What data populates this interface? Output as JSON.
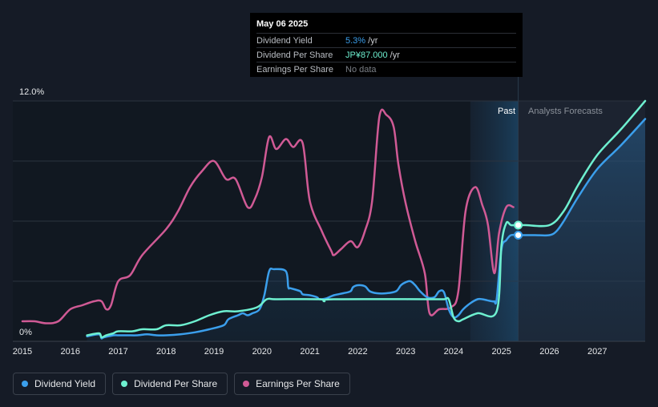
{
  "tooltip": {
    "date": "May 06 2025",
    "rows": [
      {
        "name": "Dividend Yield",
        "value": "5.3%",
        "suffix": " /yr",
        "color": "#3b9fec"
      },
      {
        "name": "Dividend Per Share",
        "value": "JP¥87.000",
        "suffix": " /yr",
        "color": "#6ef0d0"
      },
      {
        "name": "Earnings Per Share",
        "value": "No data",
        "suffix": "",
        "color": "#7a7f86"
      }
    ]
  },
  "regions": {
    "past_label": "Past",
    "forecast_label": "Analysts Forecasts"
  },
  "legend": [
    {
      "label": "Dividend Yield",
      "color": "#3b9fec"
    },
    {
      "label": "Dividend Per Share",
      "color": "#6ef0d0"
    },
    {
      "label": "Earnings Per Share",
      "color": "#d05a95"
    }
  ],
  "chart_data": {
    "type": "line",
    "y_tick_labels": [
      "12.0%",
      "0%"
    ],
    "ylim": [
      0,
      12
    ],
    "xlim": [
      2014.8,
      2028.0
    ],
    "x_ticks": [
      2015,
      2016,
      2017,
      2018,
      2019,
      2020,
      2021,
      2022,
      2023,
      2024,
      2025,
      2026,
      2027
    ],
    "past_start": 2024.35,
    "today": 2025.35,
    "grid": true,
    "legend_position": "bottom-left",
    "series": [
      {
        "name": "Dividend Yield",
        "color": "#3b9fec",
        "area": true,
        "x": [
          2016.35,
          2016.6,
          2016.65,
          2016.7,
          2016.9,
          2017.0,
          2017.2,
          2017.4,
          2017.6,
          2017.8,
          2018.0,
          2018.3,
          2018.6,
          2018.9,
          2019.2,
          2019.3,
          2019.5,
          2019.6,
          2019.7,
          2019.8,
          2019.95,
          2020.05,
          2020.15,
          2020.25,
          2020.5,
          2020.55,
          2020.6,
          2020.8,
          2020.85,
          2021.0,
          2021.15,
          2021.2,
          2021.35,
          2021.5,
          2021.7,
          2021.85,
          2021.9,
          2022.0,
          2022.15,
          2022.25,
          2022.4,
          2022.6,
          2022.8,
          2022.9,
          2023.0,
          2023.1,
          2023.2,
          2023.3,
          2023.45,
          2023.6,
          2023.7,
          2023.8,
          2023.9,
          2024.0,
          2024.1,
          2024.2,
          2024.35,
          2024.5,
          2024.6,
          2024.7,
          2024.8,
          2024.85,
          2024.9,
          2025.0,
          2025.1,
          2025.2,
          2025.35,
          2025.5,
          2025.7,
          2026.0,
          2026.15,
          2026.3,
          2026.6,
          2027.0,
          2027.5,
          2028.0
        ],
        "y": [
          0.25,
          0.35,
          0.15,
          0.2,
          0.3,
          0.3,
          0.3,
          0.3,
          0.35,
          0.3,
          0.3,
          0.35,
          0.45,
          0.6,
          0.8,
          1.1,
          1.3,
          1.4,
          1.3,
          1.4,
          1.6,
          2.3,
          3.5,
          3.6,
          3.5,
          2.7,
          2.65,
          2.5,
          2.35,
          2.3,
          2.2,
          2.1,
          2.15,
          2.3,
          2.4,
          2.5,
          2.7,
          2.8,
          2.75,
          2.5,
          2.4,
          2.4,
          2.5,
          2.8,
          2.95,
          3.0,
          2.8,
          2.5,
          2.2,
          2.2,
          2.5,
          2.45,
          1.6,
          1.2,
          1.3,
          1.6,
          1.9,
          2.1,
          2.1,
          2.05,
          2.0,
          2.0,
          2.1,
          4.6,
          5.05,
          5.3,
          5.3,
          5.3,
          5.3,
          5.3,
          5.5,
          6.0,
          7.2,
          8.6,
          9.8,
          11.1
        ]
      },
      {
        "name": "Dividend Per Share",
        "color": "#6ef0d0",
        "area": false,
        "x": [
          2016.35,
          2016.6,
          2016.65,
          2016.75,
          2016.9,
          2017.0,
          2017.3,
          2017.5,
          2017.8,
          2018.0,
          2018.3,
          2018.6,
          2018.9,
          2019.2,
          2019.5,
          2019.9,
          2020.1,
          2020.3,
          2021.2,
          2021.3,
          2021.5,
          2023.5,
          2023.8,
          2023.9,
          2024.0,
          2024.1,
          2024.2,
          2024.5,
          2024.9,
          2025.0,
          2025.1,
          2025.2,
          2025.35,
          2025.5,
          2026.0,
          2026.3,
          2026.6,
          2027.0,
          2027.5,
          2028.0
        ],
        "y": [
          0.3,
          0.4,
          0.2,
          0.3,
          0.4,
          0.5,
          0.5,
          0.6,
          0.6,
          0.8,
          0.8,
          1.0,
          1.3,
          1.5,
          1.5,
          1.7,
          2.1,
          2.1,
          2.1,
          2.0,
          2.1,
          2.1,
          2.1,
          2.1,
          1.2,
          1.0,
          1.1,
          1.4,
          1.5,
          4.8,
          5.9,
          5.8,
          5.8,
          5.8,
          5.8,
          6.5,
          7.8,
          9.3,
          10.6,
          12.0
        ]
      },
      {
        "name": "Earnings Per Share",
        "color": "#d05a95",
        "area": false,
        "x": [
          2015.0,
          2015.25,
          2015.5,
          2015.75,
          2016.0,
          2016.25,
          2016.5,
          2016.65,
          2016.75,
          2016.85,
          2017.0,
          2017.25,
          2017.5,
          2018.0,
          2018.25,
          2018.5,
          2018.75,
          2019.0,
          2019.25,
          2019.45,
          2019.7,
          2019.85,
          2020.0,
          2020.15,
          2020.3,
          2020.5,
          2020.65,
          2020.85,
          2021.0,
          2021.25,
          2021.45,
          2021.5,
          2021.65,
          2021.85,
          2022.0,
          2022.15,
          2022.3,
          2022.45,
          2022.6,
          2022.75,
          2022.85,
          2023.0,
          2023.2,
          2023.4,
          2023.5,
          2023.7,
          2023.95,
          2024.1,
          2024.25,
          2024.45,
          2024.6,
          2024.72,
          2024.85,
          2024.95,
          2025.1,
          2025.25
        ],
        "y": [
          1.0,
          1.0,
          0.9,
          1.0,
          1.6,
          1.8,
          2.0,
          2.0,
          1.6,
          1.8,
          3.0,
          3.3,
          4.3,
          5.6,
          6.5,
          7.7,
          8.5,
          9.0,
          8.1,
          8.1,
          6.7,
          7.1,
          8.2,
          10.2,
          9.6,
          10.1,
          9.7,
          9.9,
          7.0,
          5.5,
          4.5,
          4.3,
          4.6,
          5.0,
          4.7,
          5.5,
          7.0,
          11.2,
          11.3,
          10.7,
          8.8,
          6.9,
          5.0,
          3.4,
          1.4,
          1.6,
          1.7,
          2.5,
          6.5,
          7.7,
          6.8,
          5.8,
          3.4,
          5.4,
          6.7,
          6.7
        ]
      }
    ],
    "current_markers": [
      {
        "series": "Dividend Per Share",
        "x": 2025.35,
        "y": 5.8
      },
      {
        "series": "Dividend Yield",
        "x": 2025.35,
        "y": 5.3
      }
    ]
  }
}
